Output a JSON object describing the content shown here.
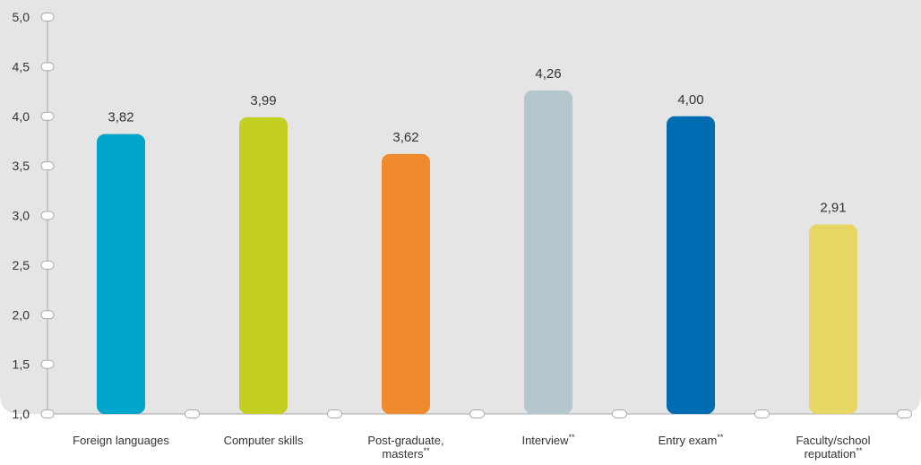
{
  "chart_data": {
    "type": "bar",
    "title": "",
    "xlabel": "",
    "ylabel": "",
    "ylim": [
      1.0,
      5.0
    ],
    "yticks": [
      "1,0",
      "1,5",
      "2,0",
      "2,5",
      "3,0",
      "3,5",
      "4,0",
      "4,5",
      "5,0"
    ],
    "ytick_values": [
      1.0,
      1.5,
      2.0,
      2.5,
      3.0,
      3.5,
      4.0,
      4.5,
      5.0
    ],
    "grid": false,
    "categories": [
      {
        "lines": [
          "Foreign languages"
        ],
        "note": ""
      },
      {
        "lines": [
          "Computer skills"
        ],
        "note": ""
      },
      {
        "lines": [
          "Post-graduate,",
          "masters"
        ],
        "note": "**"
      },
      {
        "lines": [
          "Interview"
        ],
        "note": "**"
      },
      {
        "lines": [
          "Entry exam"
        ],
        "note": "**"
      },
      {
        "lines": [
          "Faculty/school",
          "reputation"
        ],
        "note": "**"
      }
    ],
    "values": [
      3.82,
      3.99,
      3.62,
      4.26,
      4.0,
      2.91
    ],
    "value_labels": [
      "3,82",
      "3,99",
      "3,62",
      "4,26",
      "4,00",
      "2,91"
    ],
    "colors": [
      "#00a5cc",
      "#c3d021",
      "#ef8a2e",
      "#b4c7cc",
      "#006db3",
      "#e6d764"
    ],
    "background_color": "#e5e5e6",
    "axis_color": "#a8a8a8",
    "marker_color": "#ffffff"
  }
}
